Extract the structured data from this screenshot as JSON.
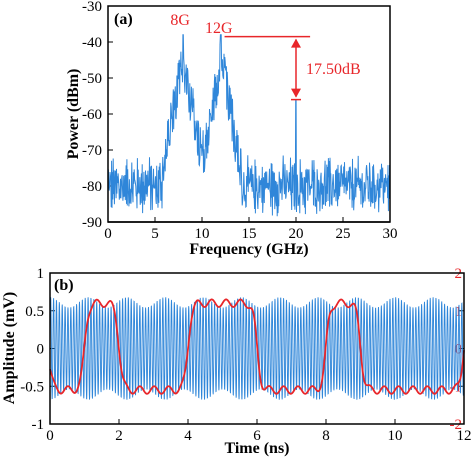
{
  "colors": {
    "blue": "#2f86d9",
    "red": "#e8262a",
    "axis": "#000000"
  },
  "chart_data": [
    {
      "type": "line",
      "panel_label": "(a)",
      "xlabel": "Frequency (GHz)",
      "ylabel": "Power (dBm)",
      "xlim": [
        0,
        30
      ],
      "ylim": [
        -90,
        -30
      ],
      "xticks": [
        0,
        5,
        10,
        15,
        20,
        25,
        30
      ],
      "yticks": [
        -90,
        -80,
        -70,
        -60,
        -50,
        -40,
        -30
      ],
      "grid": false,
      "noise_floor_dbm": -80,
      "peaks": [
        {
          "freq_ghz": 8,
          "power_dbm": -38,
          "label": "8G"
        },
        {
          "freq_ghz": 12,
          "power_dbm": -38,
          "label": "12G"
        },
        {
          "freq_ghz": 20,
          "power_dbm": -56
        }
      ],
      "annotation": {
        "text": "17.50dB",
        "from_dbm": -38.5,
        "to_dbm": -56,
        "at_freq_ghz": 20
      }
    },
    {
      "type": "line",
      "panel_label": "(b)",
      "xlabel": "Time (ns)",
      "ylabel": "Amplitude (mV)",
      "xlim": [
        0,
        12
      ],
      "ylim": [
        -1,
        1
      ],
      "y2lim": [
        -2,
        2
      ],
      "xticks": [
        0,
        2,
        4,
        6,
        8,
        10,
        12
      ],
      "yticks": [
        -1,
        -0.5,
        0,
        0.5,
        1
      ],
      "y2ticks": [
        -2,
        -1,
        0,
        1,
        2
      ],
      "grid": false,
      "series": [
        {
          "axis": "left",
          "carrier_ghz": 12,
          "amplitude_mv": 0.68
        },
        {
          "axis": "right",
          "bit_period_ns": 1,
          "bits": [
            0,
            1,
            0,
            0,
            1,
            1,
            0,
            0,
            1,
            0,
            0,
            0,
            1,
            1,
            0
          ],
          "levels": [
            -1.1,
            1.2
          ]
        }
      ]
    }
  ]
}
